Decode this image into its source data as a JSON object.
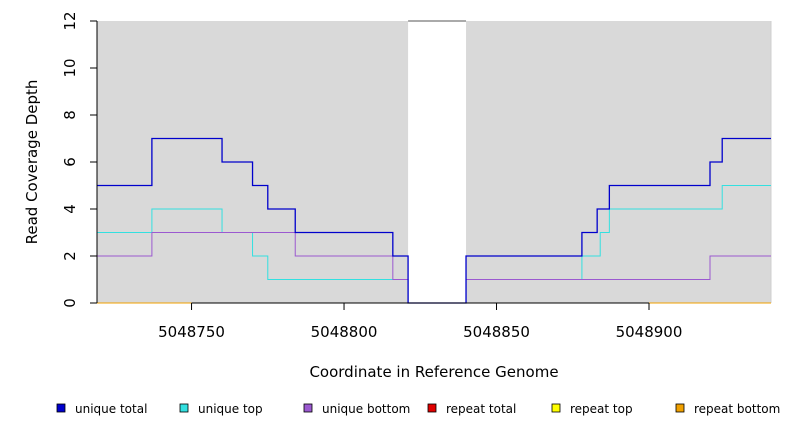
{
  "chart_data": {
    "type": "line",
    "xlabel": "Coordinate in Reference Genome",
    "ylabel": "Read Coverage Depth",
    "xlim": [
      5048719,
      5048940
    ],
    "ylim": [
      0,
      12
    ],
    "x_ticks": [
      5048750,
      5048800,
      5048850,
      5048900
    ],
    "x_tick_labels": [
      "5048750",
      "5048800",
      "5048850",
      "5048900"
    ],
    "y_ticks": [
      0,
      2,
      4,
      6,
      8,
      10,
      12
    ],
    "y_tick_labels": [
      "0",
      "2",
      "4",
      "6",
      "8",
      "10",
      "12"
    ],
    "background_color": "#d9d9d9",
    "gap_region": [
      5048821,
      5048840
    ],
    "legend_position": "bottom",
    "series": [
      {
        "name": "unique total",
        "color": "#0000cc",
        "steps": [
          [
            5048719,
            5
          ],
          [
            5048737,
            7
          ],
          [
            5048760,
            6
          ],
          [
            5048770,
            5
          ],
          [
            5048775,
            4
          ],
          [
            5048784,
            3
          ],
          [
            5048816,
            2
          ],
          [
            5048821,
            0
          ],
          [
            5048840,
            2
          ],
          [
            5048878,
            3
          ],
          [
            5048883,
            4
          ],
          [
            5048887,
            5
          ],
          [
            5048920,
            6
          ],
          [
            5048924,
            7
          ],
          [
            5048940,
            7
          ]
        ]
      },
      {
        "name": "unique top",
        "color": "#33e0e0",
        "steps": [
          [
            5048719,
            3
          ],
          [
            5048737,
            4
          ],
          [
            5048760,
            3
          ],
          [
            5048770,
            2
          ],
          [
            5048775,
            1
          ],
          [
            5048821,
            0
          ],
          [
            5048840,
            1
          ],
          [
            5048878,
            2
          ],
          [
            5048884,
            3
          ],
          [
            5048887,
            4
          ],
          [
            5048924,
            5
          ],
          [
            5048940,
            5
          ]
        ]
      },
      {
        "name": "unique bottom",
        "color": "#9b59d0",
        "steps": [
          [
            5048719,
            2
          ],
          [
            5048737,
            3
          ],
          [
            5048784,
            2
          ],
          [
            5048816,
            1
          ],
          [
            5048821,
            0
          ],
          [
            5048840,
            1
          ],
          [
            5048920,
            2
          ],
          [
            5048940,
            2
          ]
        ]
      },
      {
        "name": "repeat total",
        "color": "#e00000",
        "steps": [
          [
            5048719,
            0
          ],
          [
            5048940,
            0
          ]
        ]
      },
      {
        "name": "repeat top",
        "color": "#ffff00",
        "steps": [
          [
            5048719,
            0
          ],
          [
            5048940,
            0
          ]
        ]
      },
      {
        "name": "repeat bottom",
        "color": "#f0a000",
        "steps": [
          [
            5048719,
            0
          ],
          [
            5048940,
            0
          ]
        ]
      }
    ]
  }
}
